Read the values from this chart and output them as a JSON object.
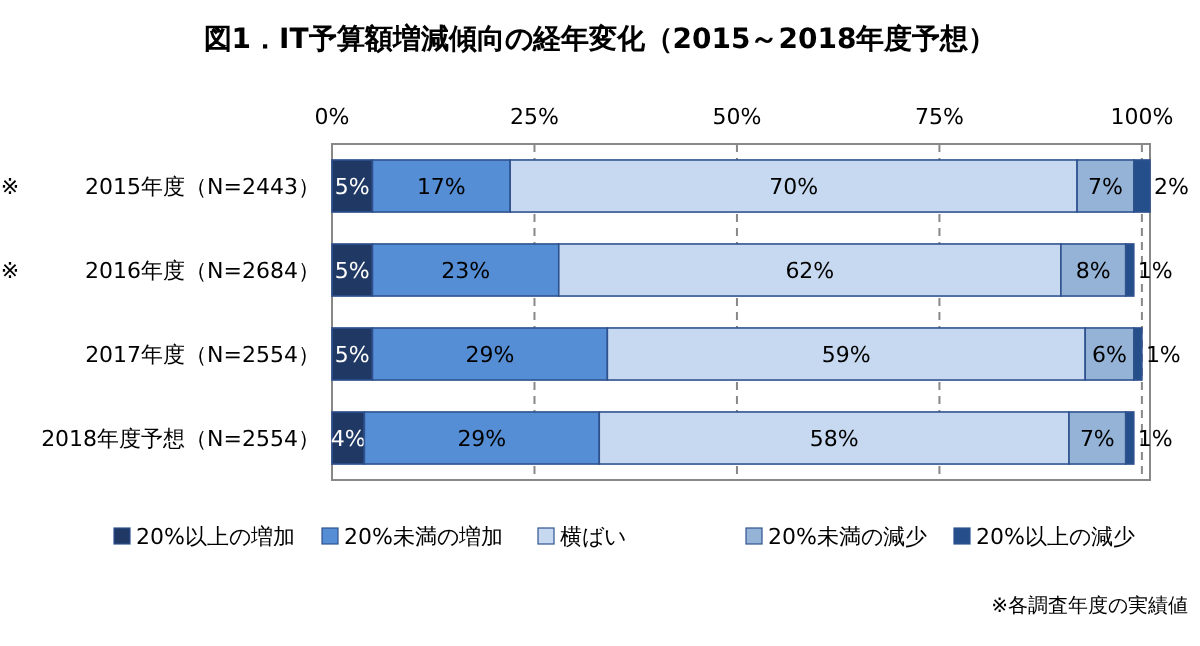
{
  "chart_data": {
    "type": "bar",
    "orientation": "horizontal",
    "stacked": true,
    "title": "図1．IT予算額増減傾向の経年変化（2015～2018年度予想）",
    "categories": [
      "※　　　2015年度（N=2443）",
      "※　　　2016年度（N=2684）",
      "2017年度（N=2554）",
      "2018年度予想（N=2554）"
    ],
    "series": [
      {
        "name": "20%以上の増加",
        "color": "#1f3864",
        "values": [
          5,
          5,
          5,
          4
        ],
        "value_labels": [
          "5%",
          "5%",
          "5%",
          "4%"
        ]
      },
      {
        "name": "20%未満の増加",
        "color": "#558ed5",
        "values": [
          17,
          23,
          29,
          29
        ],
        "value_labels": [
          "17%",
          "23%",
          "29%",
          "29%"
        ]
      },
      {
        "name": "横ばい",
        "color": "#c6d9f1",
        "values": [
          70,
          62,
          59,
          58
        ],
        "value_labels": [
          "70%",
          "62%",
          "59%",
          "58%"
        ]
      },
      {
        "name": "20%未満の減少",
        "color": "#95b3d7",
        "values": [
          7,
          8,
          6,
          7
        ],
        "value_labels": [
          "7%",
          "8%",
          "6%",
          "7%"
        ]
      },
      {
        "name": "20%以上の減少",
        "color": "#254f8a",
        "values": [
          2,
          1,
          1,
          1
        ],
        "value_labels": [
          "2%",
          "1%",
          "1%",
          "1%"
        ]
      }
    ],
    "xlim": [
      0,
      101
    ],
    "xticks": [
      {
        "value": 0,
        "label": "0%"
      },
      {
        "value": 25,
        "label": "25%"
      },
      {
        "value": 50,
        "label": "50%"
      },
      {
        "value": 75,
        "label": "75%"
      },
      {
        "value": 100,
        "label": "100%"
      }
    ],
    "grid": "x",
    "legend": "bottom",
    "annotations": [
      "※各調査年度の実績値"
    ]
  }
}
